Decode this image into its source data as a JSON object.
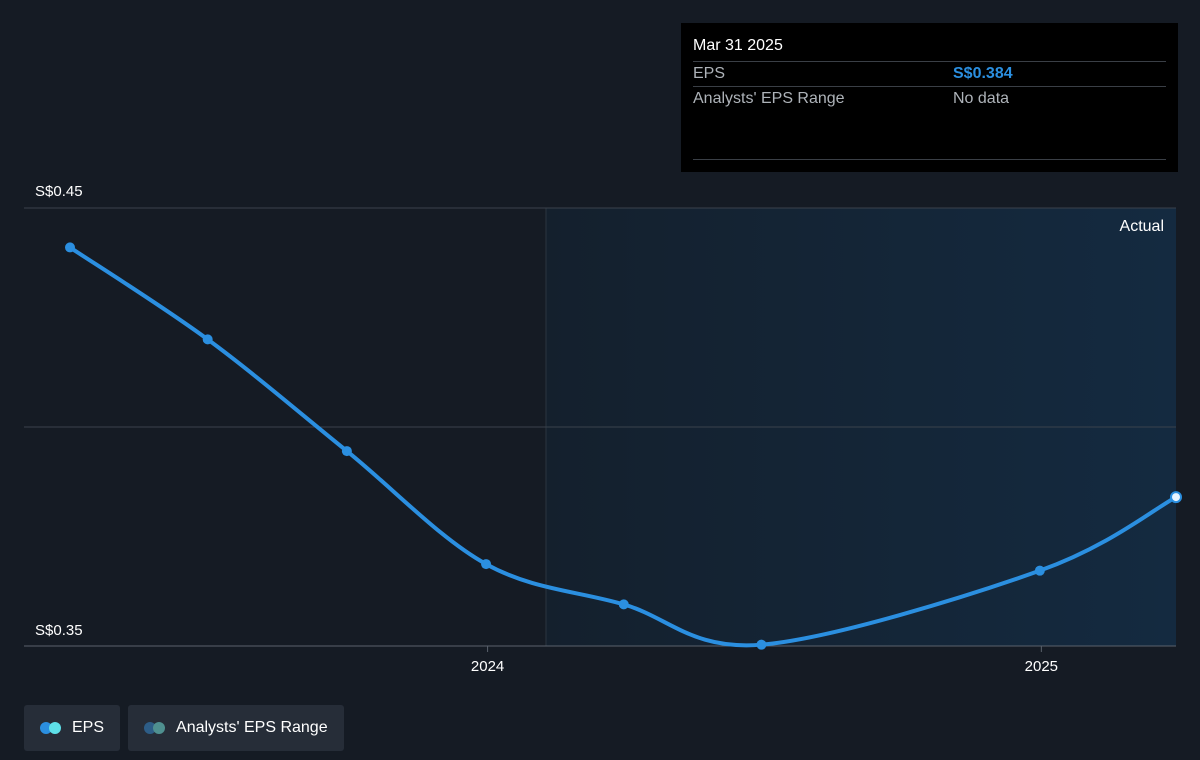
{
  "chart_data": {
    "type": "line",
    "y_tick_labels": [
      "S$0.45",
      "S$0.35"
    ],
    "ylim": [
      0.35,
      0.45
    ],
    "x_tick_labels": [
      "2024",
      "2025"
    ],
    "grid": true,
    "region_label": "Actual",
    "series": [
      {
        "name": "EPS",
        "color": "#2b8fe0",
        "points": [
          {
            "x": "2023-03-31",
            "y": 0.441
          },
          {
            "x": "2023-06-30",
            "y": 0.42
          },
          {
            "x": "2023-09-30",
            "y": 0.3945
          },
          {
            "x": "2023-12-31",
            "y": 0.3687
          },
          {
            "x": "2024-03-31",
            "y": 0.3595
          },
          {
            "x": "2024-06-30",
            "y": 0.3503
          },
          {
            "x": "2024-12-31",
            "y": 0.3672
          },
          {
            "x": "2025-03-31",
            "y": 0.384
          }
        ]
      }
    ]
  },
  "tooltip": {
    "date": "Mar 31 2025",
    "rows": [
      {
        "label": "EPS",
        "value": "S$0.384"
      },
      {
        "label": "Analysts' EPS Range",
        "value": "No data"
      }
    ]
  },
  "legend": [
    {
      "label": "EPS",
      "colors": [
        "#2b8fe0",
        "#5ee0e8"
      ]
    },
    {
      "label": "Analysts' EPS Range",
      "colors": [
        "#2d5d87",
        "#4f9090"
      ]
    }
  ],
  "colors": {
    "background": "#151b24",
    "forecast_region": "#13263a",
    "line": "#2b8fe0"
  }
}
